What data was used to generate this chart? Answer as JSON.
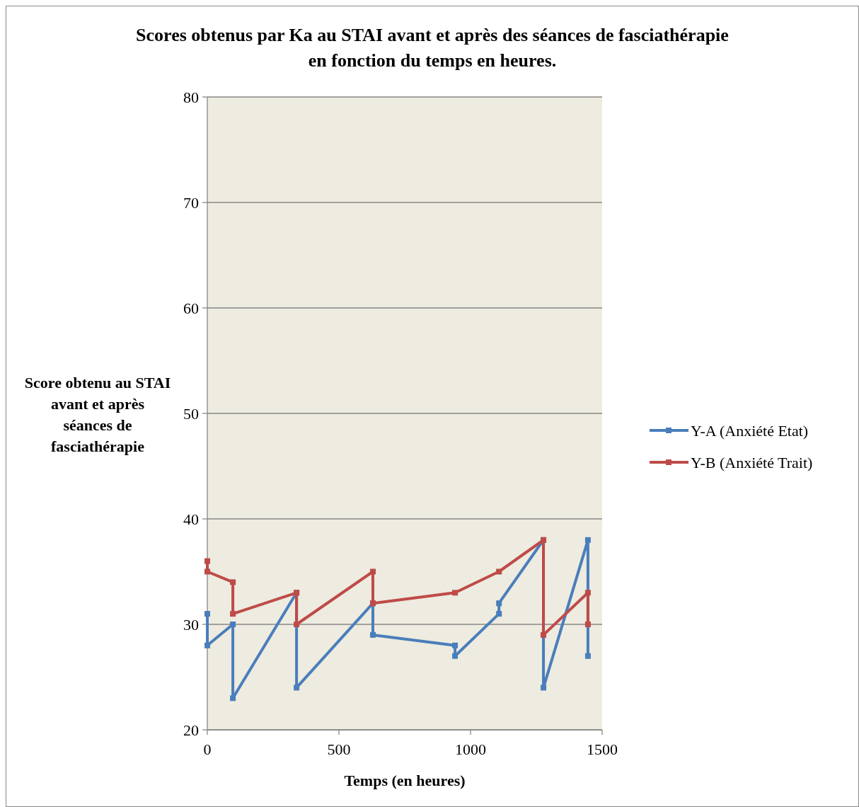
{
  "chart_data": {
    "type": "line",
    "title": "Scores obtenus  par Ka au STAI avant et après des séances de fasciathérapie en fonction du temps en heures.",
    "xlabel": "Temps (en heures)",
    "ylabel": "Score obtenu au STAI avant et après séances de fasciathérapie",
    "xlim": [
      0,
      1500
    ],
    "xticks": [
      0,
      500,
      1000,
      1500
    ],
    "ylim": [
      20,
      80
    ],
    "yticks": [
      20,
      30,
      40,
      50,
      60,
      70,
      80
    ],
    "grid": "y",
    "legend": "right",
    "marker": "square",
    "line_style": "solid",
    "series": [
      {
        "name": "Y-A (Anxiété Etat)",
        "color": "#4a7ebb",
        "x": [
          0,
          0,
          97,
          97,
          339,
          339,
          629,
          629,
          941,
          941,
          1108,
          1108,
          1277,
          1277,
          1446,
          1446
        ],
        "values": [
          31,
          28,
          30,
          23,
          33,
          24,
          32,
          29,
          28,
          27,
          31,
          32,
          38,
          24,
          38,
          27
        ]
      },
      {
        "name": "Y-B (Anxiété Trait)",
        "color": "#be4b48",
        "x": [
          0,
          0,
          97,
          97,
          339,
          339,
          629,
          629,
          941,
          1108,
          1277,
          1277,
          1446,
          1446
        ],
        "values": [
          36,
          35,
          34,
          31,
          33,
          30,
          35,
          32,
          33,
          35,
          38,
          29,
          33,
          30
        ]
      }
    ]
  }
}
